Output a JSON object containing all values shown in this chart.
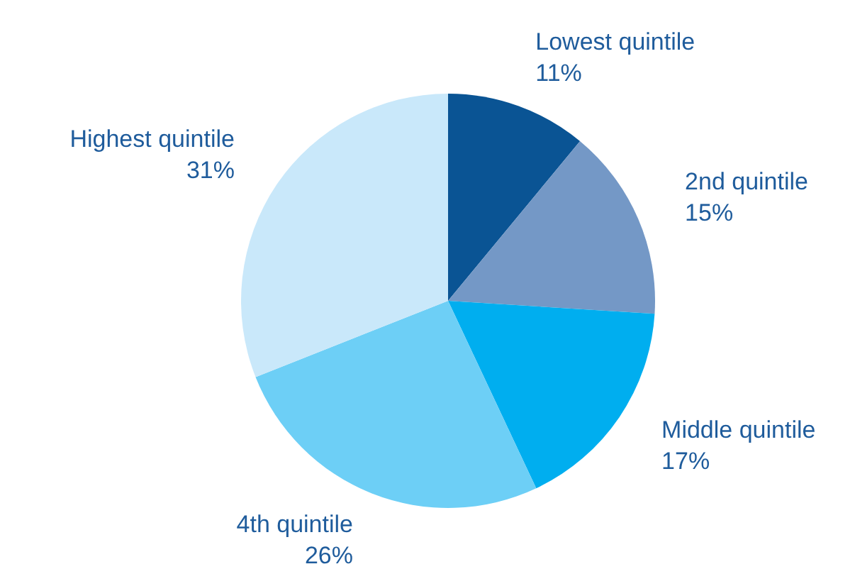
{
  "chart_data": {
    "type": "pie",
    "categories": [
      "Lowest quintile",
      "2nd quintile",
      "Middle quintile",
      "4th quintile",
      "Highest quintile"
    ],
    "values": [
      11,
      15,
      17,
      26,
      31
    ],
    "value_labels": [
      "11%",
      "15%",
      "17%",
      "26%",
      "31%"
    ],
    "colors": [
      "#0a5494",
      "#7498c6",
      "#00aeef",
      "#6dcff6",
      "#c9e8fa"
    ]
  }
}
